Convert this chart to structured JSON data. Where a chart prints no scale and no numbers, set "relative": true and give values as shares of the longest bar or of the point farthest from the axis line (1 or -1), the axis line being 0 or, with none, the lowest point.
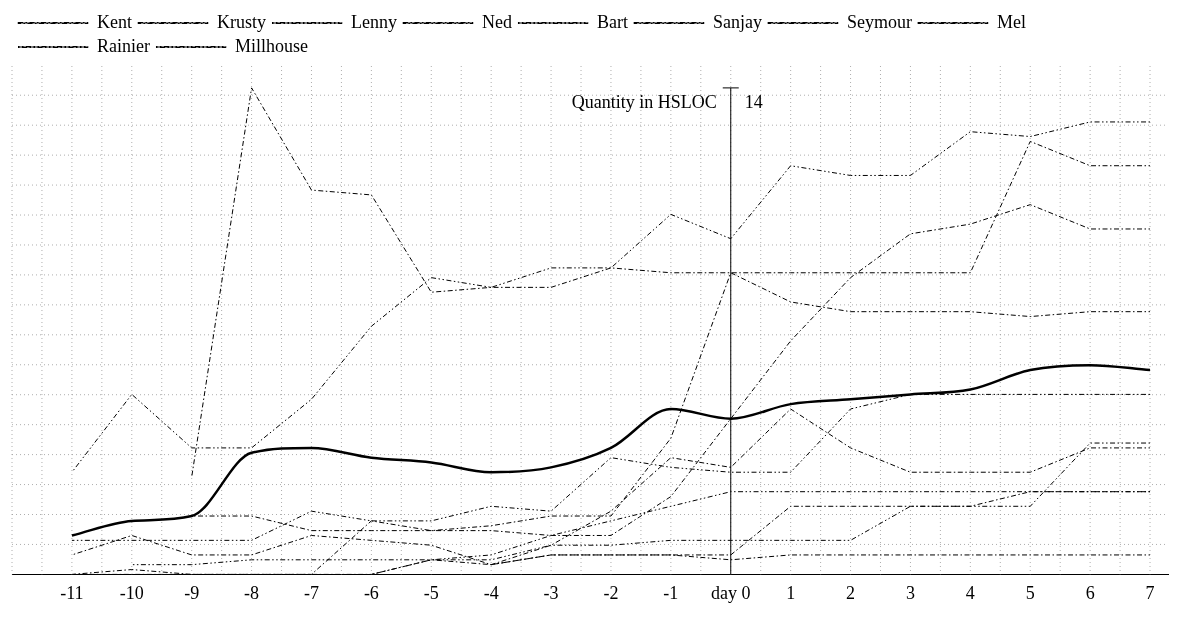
{
  "chart_data": {
    "type": "line",
    "relative": true,
    "ylabel": "Quantity in HSLOC",
    "annotations": [
      "14"
    ],
    "legend": "top",
    "grid": true,
    "x": [
      -11,
      -10,
      -9,
      -8,
      -7,
      -6,
      -5,
      -4,
      -3,
      -2,
      -1,
      0,
      1,
      2,
      3,
      4,
      5,
      6,
      7
    ],
    "xlim": [
      -12,
      7.3
    ],
    "xticks": [
      -11,
      -10,
      -9,
      -8,
      -7,
      -6,
      -5,
      -4,
      -3,
      -2,
      -1,
      {
        "value": 0,
        "label": "day 0"
      },
      1,
      2,
      3,
      4,
      5,
      6,
      7
    ],
    "series": [
      {
        "name": "Kent",
        "color": "#000000",
        "line_style": "dashed",
        "values": [
          0,
          0,
          0,
          0,
          0,
          0.11,
          0.09,
          0.09,
          0.08,
          0.08,
          0.16,
          0.32,
          0.48,
          0.61,
          0.7,
          0.72,
          0.76,
          0.71,
          0.71
        ]
      },
      {
        "name": "Krusty",
        "color": "#000000",
        "line_style": "dashed",
        "values": [
          null,
          null,
          0.2,
          1.0,
          0.79,
          0.78,
          0.58,
          0.59,
          0.59,
          0.63,
          0.62,
          0.62,
          0.62,
          0.62,
          0.62,
          0.62,
          0.89,
          0.84,
          0.84
        ]
      },
      {
        "name": "Lenny",
        "color": "#000000",
        "line_style": "dotted",
        "values": [
          null,
          0.02,
          0.02,
          0.03,
          0.03,
          0.03,
          0.03,
          0.03,
          0.06,
          0.06,
          0.07,
          0.07,
          0.07,
          0.07,
          0.14,
          0.14,
          0.14,
          0.27,
          0.27
        ]
      },
      {
        "name": "Ned",
        "color": "#000000",
        "line_style": "dashed",
        "values": [
          0,
          0.01,
          0,
          0,
          0,
          0,
          0.03,
          0.02,
          0.04,
          0.04,
          0.04,
          0.03,
          0.04,
          0.04,
          0.04,
          0.04,
          0.04,
          0.04,
          0.04
        ]
      },
      {
        "name": "Bart",
        "color": "#000000",
        "line_style": "dotted",
        "values": [
          0.21,
          0.37,
          0.26,
          0.26,
          0.36,
          0.51,
          0.61,
          0.59,
          0.63,
          0.63,
          0.74,
          0.69,
          0.84,
          0.82,
          0.82,
          0.91,
          0.9,
          0.93,
          0.93
        ]
      },
      {
        "name": "Sanjay",
        "color": "#000000",
        "line_style": "dashed",
        "values": [
          0.04,
          0.08,
          0.04,
          0.04,
          0.08,
          0.07,
          0.06,
          0.02,
          0.06,
          0.13,
          0.24,
          0.22,
          0.34,
          0.26,
          0.21,
          0.21,
          0.21,
          0.26,
          0.26
        ]
      },
      {
        "name": "Seymour",
        "color": "#000000",
        "line_style": "dashed",
        "values": [
          null,
          null,
          null,
          null,
          null,
          null,
          null,
          0.02,
          0.04,
          0.04,
          0.04,
          0.04,
          0.14,
          0.14,
          0.14,
          0.14,
          0.17,
          0.17,
          0.17
        ]
      },
      {
        "name": "Mel",
        "color": "#000000",
        "line_style": "dashed",
        "values": [
          null,
          null,
          0.12,
          0.12,
          0.09,
          0.09,
          0.09,
          0.1,
          0.12,
          0.12,
          0.28,
          0.62,
          0.56,
          0.54,
          0.54,
          0.54,
          0.53,
          0.54,
          0.54
        ]
      },
      {
        "name": "Rainier",
        "color": "#000000",
        "line_style": "dotted",
        "values": [
          0.07,
          0.07,
          0.07,
          0.07,
          0.13,
          0.11,
          0.11,
          0.14,
          0.13,
          0.24,
          0.22,
          0.21,
          0.21,
          0.34,
          0.37,
          0.37,
          0.37,
          0.37,
          0.37
        ]
      },
      {
        "name": "Millhouse",
        "color": "#000000",
        "line_style": "dotted",
        "values": [
          null,
          null,
          null,
          null,
          null,
          0,
          0.03,
          0.04,
          0.08,
          0.11,
          0.14,
          0.17,
          0.17,
          0.17,
          0.17,
          0.17,
          0.17,
          0.17,
          0.17
        ]
      },
      {
        "color": "#000000",
        "line_style": "solid",
        "values": [
          0.08,
          0.11,
          0.12,
          0.25,
          0.26,
          0.24,
          0.23,
          0.21,
          0.22,
          0.26,
          0.34,
          0.32,
          0.35,
          0.36,
          0.37,
          0.38,
          0.42,
          0.43,
          0.42
        ]
      }
    ]
  }
}
